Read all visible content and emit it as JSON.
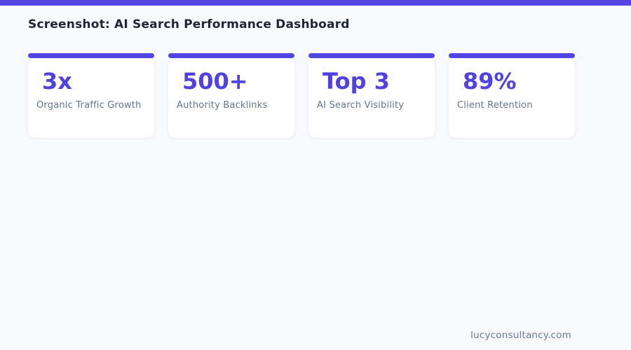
{
  "page": {
    "background_color": "#f8f9fc",
    "accent_color": "#5244e1"
  },
  "header": {
    "title": "Screenshot: AI Search Performance Dashboard"
  },
  "stats": {
    "cards": [
      {
        "value": "3x",
        "label": "Organic Traffic Growth"
      },
      {
        "value": "500+",
        "label": "Authority Backlinks"
      },
      {
        "value": "Top 3",
        "label": "AI Search Visibility"
      },
      {
        "value": "89%",
        "label": "Client Retention"
      }
    ]
  },
  "footer": {
    "website": "lucyconsultancy.com"
  }
}
